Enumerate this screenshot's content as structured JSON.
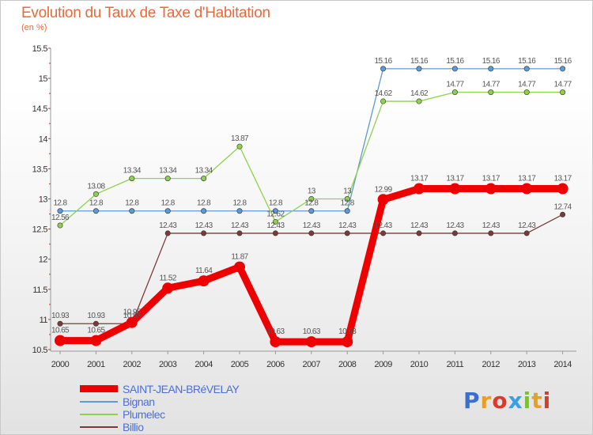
{
  "header": {
    "title": "Evolution du Taux de Taxe d'Habitation",
    "subtitle": "(en %)"
  },
  "logo": {
    "text": "Proxiti"
  },
  "chart_data": {
    "type": "line",
    "title": "Evolution du Taux de Taxe d'Habitation",
    "subtitle": "(en %)",
    "x": [
      "2000",
      "2001",
      "2002",
      "2003",
      "2004",
      "2005",
      "2006",
      "2007",
      "2008",
      "2009",
      "2010",
      "2011",
      "2012",
      "2013",
      "2014"
    ],
    "ylim": [
      10.5,
      15.5
    ],
    "yticks": [
      "10.5",
      "11",
      "11.5",
      "12",
      "12.5",
      "13",
      "13.5",
      "14",
      "14.5",
      "15",
      "15.5"
    ],
    "grid": false,
    "legend_position": "bottom-left",
    "series": [
      {
        "name": "SAINT-JEAN-BRéVELAY",
        "color": "#ee0000",
        "values": [
          10.65,
          10.65,
          10.95,
          11.52,
          11.64,
          11.87,
          10.63,
          10.63,
          10.63,
          12.99,
          13.17,
          13.17,
          13.17,
          13.17,
          13.17
        ],
        "labels": [
          "10.65",
          "10.65",
          "10.95",
          "11.52",
          "11.64",
          "11.87",
          "10.63",
          "10.63",
          "10.63",
          "12.99",
          "13.17",
          "13.17",
          "13.17",
          "13.17",
          "13.17"
        ]
      },
      {
        "name": "Bignan",
        "color": "#5b9bd5",
        "values": [
          12.8,
          12.8,
          12.8,
          12.8,
          12.8,
          12.8,
          12.8,
          12.8,
          12.8,
          15.16,
          15.16,
          15.16,
          15.16,
          15.16,
          15.16
        ],
        "labels": [
          "12.8",
          "12.8",
          "12.8",
          "12.8",
          "12.8",
          "12.8",
          "12.8",
          "12.8",
          "12.8",
          "15.16",
          "15.16",
          "15.16",
          "15.16",
          "15.16",
          "15.16"
        ]
      },
      {
        "name": "Plumelec",
        "color": "#8fd14f",
        "values": [
          12.56,
          13.08,
          13.34,
          13.34,
          13.34,
          13.87,
          12.62,
          13,
          13,
          14.62,
          14.62,
          14.77,
          14.77,
          14.77,
          14.77
        ],
        "labels": [
          "12.56",
          "13.08",
          "13.34",
          "13.34",
          "13.34",
          "13.87",
          "12.62",
          "13",
          "13",
          "14.62",
          "14.62",
          "14.77",
          "14.77",
          "14.77",
          "14.77"
        ]
      },
      {
        "name": "Billio",
        "color": "#7a3a3a",
        "values": [
          10.93,
          10.93,
          10.93,
          12.43,
          12.43,
          12.43,
          12.43,
          12.43,
          12.43,
          12.43,
          12.43,
          12.43,
          12.43,
          12.43,
          12.74
        ],
        "labels": [
          "10.93",
          "10.93",
          "10.93",
          "12.43",
          "12.43",
          "12.43",
          "12.43",
          "12.43",
          "12.43",
          "12.43",
          "12.43",
          "12.43",
          "12.43",
          "12.43",
          "12.74"
        ]
      }
    ]
  }
}
